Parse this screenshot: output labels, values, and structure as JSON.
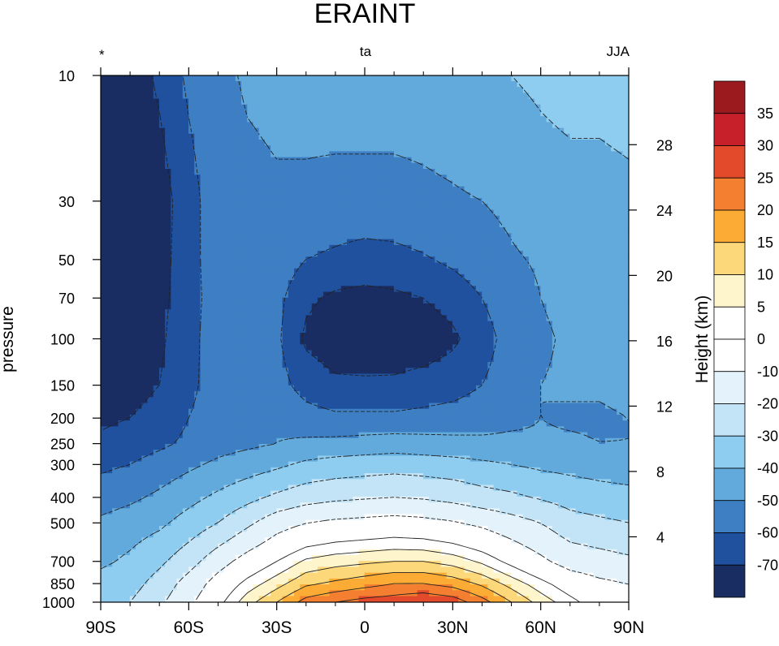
{
  "chart_data": {
    "type": "contour",
    "title": "ERAINT",
    "left_string": "*",
    "center_string": "ta",
    "right_string": "JJA",
    "ylabel": "pressure",
    "right_axis_label": "Height (km)",
    "x_tick_labels": [
      "90S",
      "60S",
      "30S",
      "0",
      "30N",
      "60N",
      "90N"
    ],
    "x_ticks": [
      -90,
      -60,
      -30,
      0,
      30,
      60,
      90
    ],
    "xlim": [
      -90,
      90
    ],
    "y_scale": "log",
    "ylim": [
      1000,
      10
    ],
    "y_ticks": [
      10,
      30,
      50,
      70,
      100,
      150,
      200,
      250,
      300,
      400,
      500,
      700,
      850,
      1000
    ],
    "height_ticks_km": [
      4,
      8,
      12,
      16,
      20,
      24,
      28
    ],
    "colorbar": {
      "labels": [
        "35",
        "30",
        "25",
        "20",
        "15",
        "10",
        "5",
        "0",
        "-10",
        "-20",
        "-30",
        "-40",
        "-50",
        "-60",
        "-70"
      ],
      "colors": [
        "#9a1a1e",
        "#c8202a",
        "#e34a2c",
        "#f57f30",
        "#fcac35",
        "#fdd87a",
        "#fef5cd",
        "#ffffff",
        "#ffffff",
        "#e4f3fb",
        "#c3e4f6",
        "#8fcdf0",
        "#62aadb",
        "#3e7fc4",
        "#20519e",
        "#1a2d62"
      ]
    },
    "levels": [
      -70,
      -60,
      -50,
      -40,
      -30,
      -20,
      -10,
      0,
      5,
      10,
      15,
      20,
      25,
      30,
      35
    ],
    "field": {
      "description": "zonal-mean air temperature (degC) vs latitude and pressure",
      "lat": [
        -90,
        -80,
        -70,
        -60,
        -50,
        -40,
        -30,
        -20,
        -10,
        0,
        10,
        20,
        30,
        40,
        50,
        60,
        70,
        80,
        90
      ],
      "pressure": [
        1000,
        850,
        700,
        500,
        400,
        300,
        250,
        200,
        150,
        100,
        70,
        50,
        30,
        10
      ],
      "values": [
        [
          -32,
          -30,
          -22,
          -12,
          -2,
          8,
          15,
          22,
          25,
          27,
          28,
          30,
          28,
          22,
          15,
          8,
          2,
          -4,
          -8
        ],
        [
          -36,
          -34,
          -26,
          -16,
          -6,
          2,
          8,
          14,
          16,
          18,
          20,
          20,
          18,
          14,
          8,
          2,
          -4,
          -8,
          -10
        ],
        [
          -42,
          -38,
          -32,
          -24,
          -14,
          -6,
          0,
          6,
          8,
          9,
          10,
          10,
          8,
          4,
          -2,
          -8,
          -14,
          -16,
          -18
        ],
        [
          -48,
          -45,
          -42,
          -36,
          -30,
          -22,
          -14,
          -10,
          -8,
          -7,
          -6,
          -7,
          -9,
          -12,
          -16,
          -20,
          -26,
          -28,
          -30
        ],
        [
          -55,
          -52,
          -48,
          -43,
          -38,
          -33,
          -28,
          -24,
          -22,
          -21,
          -20,
          -21,
          -23,
          -26,
          -28,
          -31,
          -34,
          -36,
          -37
        ],
        [
          -62,
          -60,
          -56,
          -52,
          -48,
          -45,
          -42,
          -38,
          -36,
          -35,
          -34,
          -35,
          -36,
          -38,
          -40,
          -42,
          -43,
          -44,
          -45
        ],
        [
          -68,
          -65,
          -62,
          -58,
          -54,
          -52,
          -50,
          -48,
          -47,
          -46,
          -45,
          -46,
          -47,
          -48,
          -48,
          -49,
          -49,
          -50,
          -50
        ],
        [
          -72,
          -70,
          -66,
          -60,
          -56,
          -54,
          -52,
          -56,
          -58,
          -58,
          -58,
          -57,
          -56,
          -54,
          -52,
          -50,
          -51,
          -51,
          -50
        ],
        [
          -75,
          -74,
          -70,
          -62,
          -56,
          -54,
          -56,
          -64,
          -68,
          -68,
          -68,
          -66,
          -64,
          -60,
          -55,
          -50,
          -49,
          -49,
          -48
        ],
        [
          -78,
          -76,
          -72,
          -63,
          -55,
          -54,
          -58,
          -72,
          -76,
          -78,
          -77,
          -76,
          -72,
          -64,
          -56,
          -51,
          -49,
          -48,
          -47
        ],
        [
          -80,
          -78,
          -73,
          -64,
          -55,
          -53,
          -57,
          -68,
          -72,
          -73,
          -72,
          -70,
          -66,
          -60,
          -54,
          -50,
          -48,
          -47,
          -46
        ],
        [
          -80,
          -79,
          -74,
          -64,
          -54,
          -52,
          -54,
          -60,
          -62,
          -64,
          -63,
          -61,
          -58,
          -54,
          -51,
          -49,
          -47,
          -46,
          -45
        ],
        [
          -80,
          -80,
          -75,
          -64,
          -54,
          -52,
          -51,
          -52,
          -53,
          -53,
          -53,
          -52,
          -51,
          -50,
          -48,
          -45,
          -44,
          -43,
          -42
        ],
        [
          -78,
          -76,
          -68,
          -58,
          -52,
          -49,
          -48,
          -46,
          -45,
          -45,
          -45,
          -45,
          -44,
          -42,
          -40,
          -38,
          -36,
          -37,
          -36
        ]
      ]
    }
  }
}
